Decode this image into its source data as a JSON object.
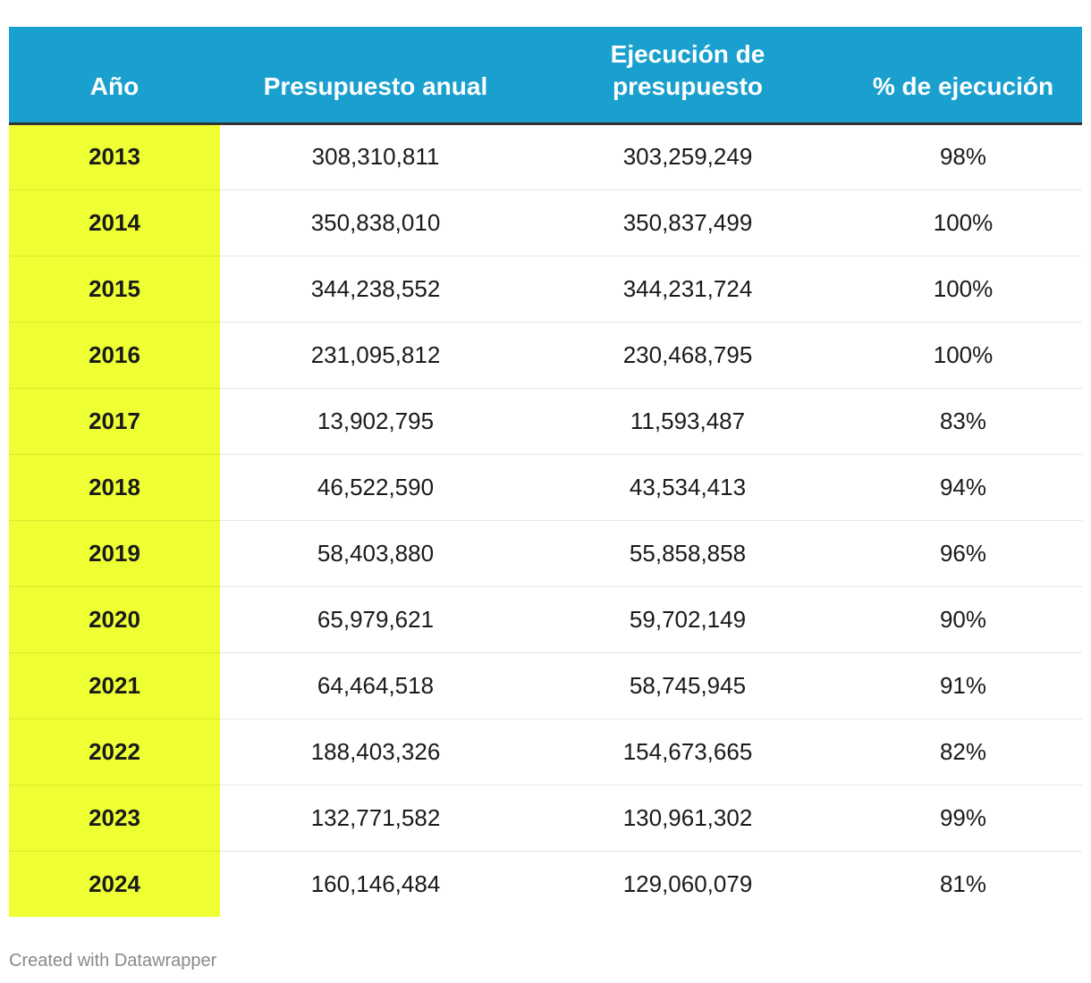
{
  "colors": {
    "header_bg": "#1aa0cf",
    "header_text": "#ffffff",
    "year_highlight": "#eeff33"
  },
  "chart_data": {
    "type": "table",
    "columns": [
      "Año",
      "Presupuesto anual",
      "Ejecución de presupuesto",
      "% de ejecución"
    ],
    "rows": [
      [
        "2013",
        "308,310,811",
        "303,259,249",
        "98%"
      ],
      [
        "2014",
        "350,838,010",
        "350,837,499",
        "100%"
      ],
      [
        "2015",
        "344,238,552",
        "344,231,724",
        "100%"
      ],
      [
        "2016",
        "231,095,812",
        "230,468,795",
        "100%"
      ],
      [
        "2017",
        "13,902,795",
        "11,593,487",
        "83%"
      ],
      [
        "2018",
        "46,522,590",
        "43,534,413",
        "94%"
      ],
      [
        "2019",
        "58,403,880",
        "55,858,858",
        "96%"
      ],
      [
        "2020",
        "65,979,621",
        "59,702,149",
        "90%"
      ],
      [
        "2021",
        "64,464,518",
        "58,745,945",
        "91%"
      ],
      [
        "2022",
        "188,403,326",
        "154,673,665",
        "82%"
      ],
      [
        "2023",
        "132,771,582",
        "130,961,302",
        "99%"
      ],
      [
        "2024",
        "160,146,484",
        "129,060,079",
        "81%"
      ]
    ]
  },
  "footer": {
    "credit": "Created with Datawrapper"
  }
}
